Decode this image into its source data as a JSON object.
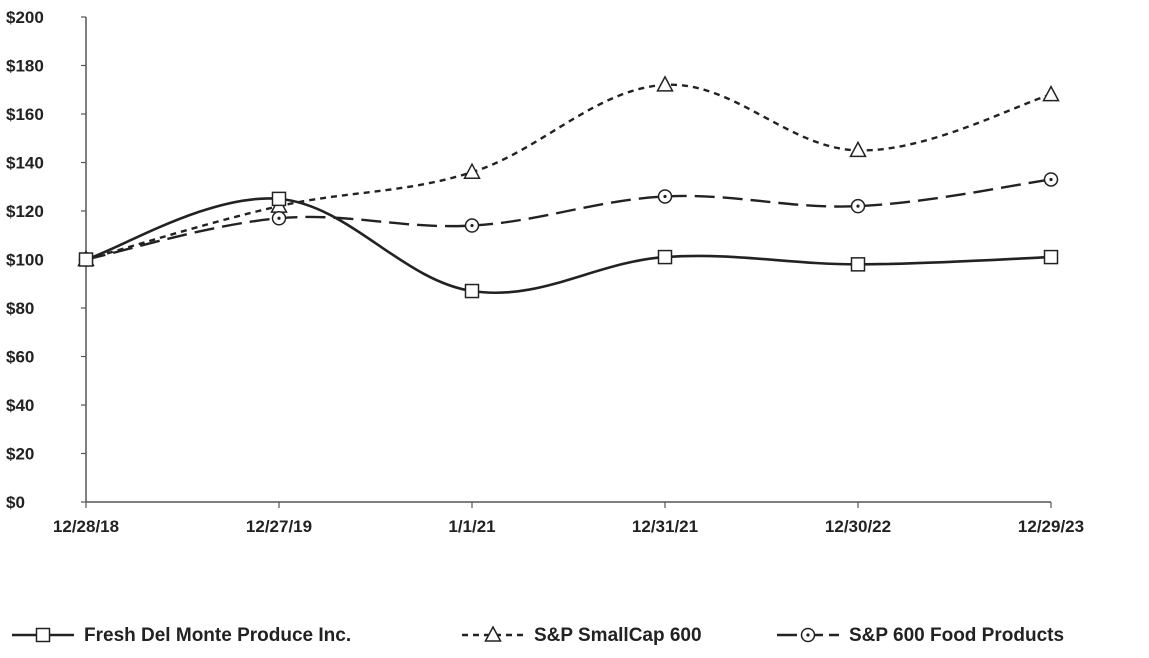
{
  "chart_data": {
    "type": "line",
    "title": "",
    "xlabel": "",
    "ylabel": "",
    "categories": [
      "12/28/18",
      "12/27/19",
      "1/1/21",
      "12/31/21",
      "12/30/22",
      "12/29/23"
    ],
    "ylim": [
      0,
      200
    ],
    "yticks": [
      0,
      20,
      40,
      60,
      80,
      100,
      120,
      140,
      160,
      180,
      200
    ],
    "ytick_labels": [
      "$0",
      "$20",
      "$40",
      "$60",
      "$80",
      "$100",
      "$120",
      "$140",
      "$160",
      "$180",
      "$200"
    ],
    "grid": false,
    "legend_position": "bottom",
    "series": [
      {
        "name": "Fresh Del Monte Produce Inc.",
        "values": [
          100,
          125,
          87,
          101,
          98,
          101
        ],
        "marker": "square",
        "dash": "solid",
        "color": "#222222"
      },
      {
        "name": "S&P SmallCap 600",
        "values": [
          100,
          122,
          136,
          172,
          145,
          168
        ],
        "marker": "triangle",
        "dash": "short-dash",
        "color": "#222222"
      },
      {
        "name": "S&P 600 Food Products",
        "values": [
          100,
          117,
          114,
          126,
          122,
          133
        ],
        "marker": "circle-dot",
        "dash": "long-dash",
        "color": "#222222"
      }
    ]
  }
}
